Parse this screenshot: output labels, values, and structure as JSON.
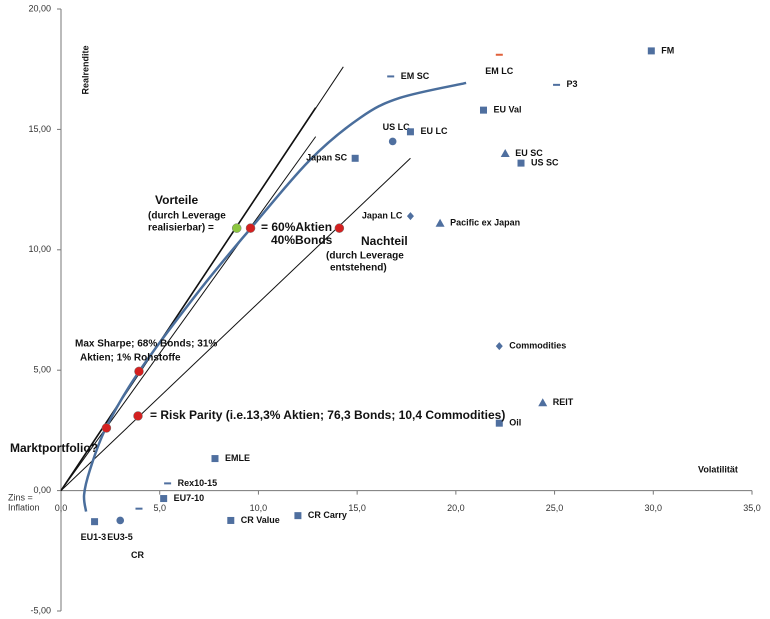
{
  "chart_data": {
    "type": "scatter",
    "x_label": "Volatilität",
    "y_label": "Realrendite",
    "xlim": [
      0,
      35
    ],
    "ylim": [
      -5,
      20
    ],
    "xticks": [
      {
        "value": 0,
        "label": "0,0"
      },
      {
        "value": 5,
        "label": "5,0"
      },
      {
        "value": 10,
        "label": "10,0"
      },
      {
        "value": 15,
        "label": "15,0"
      },
      {
        "value": 20,
        "label": "20,0"
      },
      {
        "value": 25,
        "label": "25,0"
      },
      {
        "value": 30,
        "label": "30,0"
      },
      {
        "value": 35,
        "label": "35,0"
      }
    ],
    "yticks": [
      {
        "value": -5,
        "label": "-5,00"
      },
      {
        "value": 0,
        "label": "0,00"
      },
      {
        "value": 5,
        "label": "5,00"
      },
      {
        "value": 10,
        "label": "10,00"
      },
      {
        "value": 15,
        "label": "15,00"
      },
      {
        "value": 20,
        "label": "20,00"
      }
    ],
    "marker_color": "#4f6f9f",
    "points": [
      {
        "label": "FM",
        "x": 29.9,
        "y": 18.26,
        "shape": "square"
      },
      {
        "label": "EM LC",
        "x": 22.2,
        "y": 18.1,
        "shape": "dash",
        "color": "#e0603a"
      },
      {
        "label": "P3",
        "x": 25.1,
        "y": 16.85,
        "shape": "dash"
      },
      {
        "label": "EM SC",
        "x": 16.7,
        "y": 17.2,
        "shape": "dash"
      },
      {
        "label": "EU Val",
        "x": 21.4,
        "y": 15.8,
        "shape": "square"
      },
      {
        "label": "US LC",
        "x": 16.8,
        "y": 14.5,
        "shape": "circle"
      },
      {
        "label": "EU LC",
        "x": 17.7,
        "y": 14.9,
        "shape": "square"
      },
      {
        "label": "EU SC",
        "x": 22.5,
        "y": 14.0,
        "shape": "triangle"
      },
      {
        "label": "US SC",
        "x": 23.3,
        "y": 13.6,
        "shape": "square"
      },
      {
        "label": "Japan SC",
        "x": 14.9,
        "y": 13.8,
        "shape": "square"
      },
      {
        "label": "Japan LC",
        "x": 17.7,
        "y": 11.4,
        "shape": "diamond"
      },
      {
        "label": "Pacific ex Japan",
        "x": 19.2,
        "y": 11.1,
        "shape": "triangle"
      },
      {
        "label": "Commodities",
        "x": 22.2,
        "y": 6.0,
        "shape": "diamond"
      },
      {
        "label": "REIT",
        "x": 24.4,
        "y": 3.65,
        "shape": "triangle"
      },
      {
        "label": "Oil",
        "x": 22.2,
        "y": 2.8,
        "shape": "square"
      },
      {
        "label": "EMLE",
        "x": 7.8,
        "y": 1.33,
        "shape": "square"
      },
      {
        "label": "Rex10-15",
        "x": 5.4,
        "y": 0.3,
        "shape": "dash"
      },
      {
        "label": "EU7-10",
        "x": 5.2,
        "y": -0.33,
        "shape": "square"
      },
      {
        "label": "CR Value",
        "x": 8.6,
        "y": -1.24,
        "shape": "square"
      },
      {
        "label": "CR Carry",
        "x": 12.0,
        "y": -1.04,
        "shape": "square"
      },
      {
        "label": "EU1-3",
        "x": 1.7,
        "y": -1.29,
        "shape": "square"
      },
      {
        "label": "EU3-5",
        "x": 3.0,
        "y": -1.24,
        "shape": "circle"
      },
      {
        "label": "CR",
        "x": 3.95,
        "y": -0.75,
        "shape": "dash"
      }
    ],
    "highlights": {
      "x": [
        2.3,
        3.95,
        3.9,
        8.9,
        9.6,
        14.1
      ],
      "y": [
        2.6,
        4.95,
        3.1,
        10.9,
        10.9,
        10.9
      ],
      "colors": [
        "#d42020",
        "#d42020",
        "#d42020",
        "#8cc63f",
        "#d42020",
        "#d42020"
      ]
    },
    "lines": [
      {
        "x": [
          0,
          14.3
        ],
        "y": [
          0,
          17.6
        ]
      },
      {
        "x": [
          0,
          12.9
        ],
        "y": [
          0,
          15.9
        ]
      },
      {
        "x": [
          0,
          12.9
        ],
        "y": [
          0,
          14.7
        ]
      },
      {
        "x": [
          0,
          17.7
        ],
        "y": [
          0,
          13.8
        ]
      }
    ],
    "frontier": {
      "color": "#4a6e9c",
      "x": [
        1.27,
        1.17,
        1.47,
        2.28,
        3.95,
        7.04,
        9.63,
        12.61,
        15.15,
        17.17,
        20.52
      ],
      "y": [
        -0.87,
        -0.17,
        0.87,
        2.61,
        4.94,
        8.34,
        10.91,
        13.73,
        15.48,
        16.31,
        16.93
      ]
    },
    "annotations": [
      "Marktportfolio?",
      "Vorteile",
      "(durch Leverage",
      "realisierbar) =",
      "= 60%Aktien",
      "40%Bonds",
      "Nachteil",
      "(durch Leverage",
      "entstehend)",
      "Max Sharpe; 68% Bonds; 31%",
      "Aktien; 1% Rohstoffe",
      "= Risk Parity (i.e.13,3% Aktien; 76,3 Bonds; 10,4 Commodities)",
      "Zins =",
      "Inflation"
    ]
  }
}
